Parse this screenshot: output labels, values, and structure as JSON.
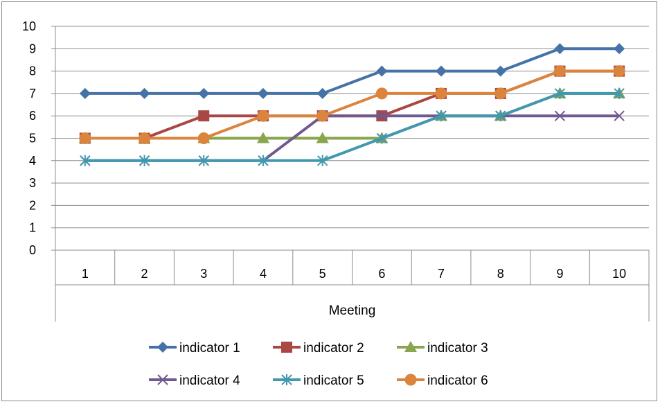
{
  "chart_data": {
    "type": "line",
    "title": "",
    "xlabel": "Meeting",
    "ylabel": "",
    "categories": [
      "1",
      "2",
      "3",
      "4",
      "5",
      "6",
      "7",
      "8",
      "9",
      "10"
    ],
    "ylim": [
      0,
      10
    ],
    "yticks": [
      "0",
      "1",
      "2",
      "3",
      "4",
      "5",
      "6",
      "7",
      "8",
      "9",
      "10"
    ],
    "grid": "horizontal",
    "legend_position": "bottom",
    "series": [
      {
        "name": "indicator 1",
        "color": "#4572A7",
        "marker": "diamond",
        "values": [
          7,
          7,
          7,
          7,
          7,
          8,
          8,
          8,
          9,
          9
        ]
      },
      {
        "name": "indicator 2",
        "color": "#AA4643",
        "marker": "square",
        "values": [
          5,
          5,
          6,
          6,
          6,
          6,
          7,
          7,
          8,
          8
        ]
      },
      {
        "name": "indicator 3",
        "color": "#89A54E",
        "marker": "triangle",
        "values": [
          5,
          5,
          5,
          5,
          5,
          5,
          6,
          6,
          7,
          7
        ]
      },
      {
        "name": "indicator 4",
        "color": "#71588F",
        "marker": "x",
        "values": [
          4,
          4,
          4,
          4,
          6,
          6,
          6,
          6,
          6,
          6
        ]
      },
      {
        "name": "indicator 5",
        "color": "#4198AF",
        "marker": "star",
        "values": [
          4,
          4,
          4,
          4,
          4,
          5,
          6,
          6,
          7,
          7
        ]
      },
      {
        "name": "indicator 6",
        "color": "#DB843D",
        "marker": "circle",
        "values": [
          5,
          5,
          5,
          6,
          6,
          7,
          7,
          7,
          8,
          8
        ]
      }
    ]
  }
}
